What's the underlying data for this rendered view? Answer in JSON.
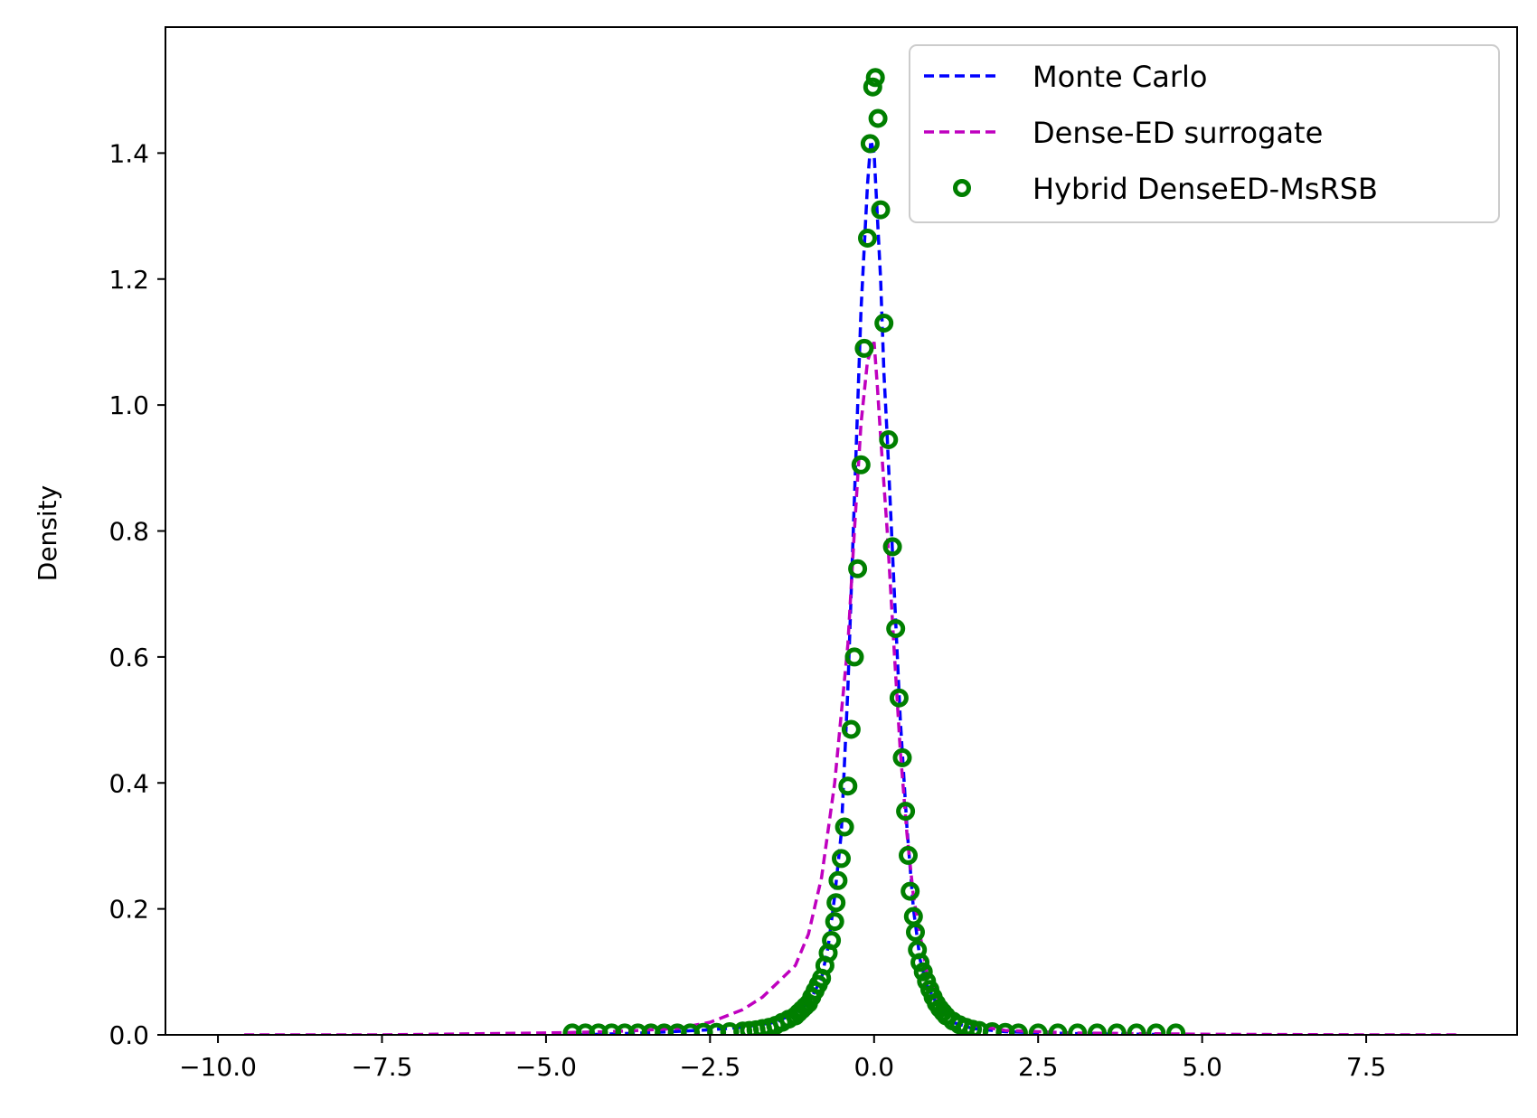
{
  "chart_data": {
    "type": "line",
    "title": "",
    "xlabel": "",
    "ylabel": "Density",
    "xlim": [
      -10.8,
      9.8
    ],
    "ylim": [
      0,
      1.6
    ],
    "x_ticks": [
      -10.0,
      -7.5,
      -5.0,
      -2.5,
      0.0,
      2.5,
      5.0,
      7.5
    ],
    "x_tick_labels": [
      "−10.0",
      "−7.5",
      "−5.0",
      "−2.5",
      "0.0",
      "2.5",
      "5.0",
      "7.5"
    ],
    "y_ticks": [
      0.0,
      0.2,
      0.4,
      0.6,
      0.8,
      1.0,
      1.2,
      1.4
    ],
    "y_tick_labels": [
      "0.0",
      "0.2",
      "0.4",
      "0.6",
      "0.8",
      "1.0",
      "1.2",
      "1.4"
    ],
    "grid": false,
    "legend_position": "top-right",
    "series": [
      {
        "name": "Monte Carlo",
        "style": "dashed",
        "color": "#0000ff",
        "x": [
          -4.5,
          -3.5,
          -2.5,
          -2.0,
          -1.5,
          -1.2,
          -1.0,
          -0.8,
          -0.7,
          -0.6,
          -0.5,
          -0.4,
          -0.3,
          -0.2,
          -0.1,
          -0.05,
          0.0,
          0.05,
          0.1,
          0.15,
          0.2,
          0.3,
          0.4,
          0.5,
          0.6,
          0.7,
          0.8,
          1.0,
          1.2,
          1.5,
          2.0,
          3.0,
          4.0,
          4.7
        ],
        "y": [
          0.0,
          0.003,
          0.008,
          0.012,
          0.02,
          0.035,
          0.05,
          0.09,
          0.14,
          0.22,
          0.32,
          0.55,
          0.85,
          1.15,
          1.35,
          1.42,
          1.4,
          1.3,
          1.2,
          1.05,
          0.95,
          0.72,
          0.5,
          0.33,
          0.2,
          0.12,
          0.08,
          0.04,
          0.02,
          0.01,
          0.005,
          0.002,
          0.001,
          0.0
        ]
      },
      {
        "name": "Dense-ED surrogate",
        "style": "dashed",
        "color": "#bf00bf",
        "x": [
          -9.6,
          -7.5,
          -5.0,
          -4.0,
          -3.0,
          -2.5,
          -2.0,
          -1.7,
          -1.5,
          -1.2,
          -1.0,
          -0.8,
          -0.6,
          -0.4,
          -0.3,
          -0.2,
          -0.1,
          0.0,
          0.05,
          0.1,
          0.2,
          0.3,
          0.4,
          0.5,
          0.6,
          0.8,
          1.0,
          1.5,
          2.0,
          3.0,
          5.0,
          7.5,
          8.9
        ],
        "y": [
          0.0,
          0.0,
          0.003,
          0.005,
          0.01,
          0.02,
          0.04,
          0.06,
          0.08,
          0.11,
          0.16,
          0.25,
          0.4,
          0.62,
          0.8,
          0.97,
          1.07,
          1.1,
          1.03,
          0.95,
          0.8,
          0.62,
          0.45,
          0.32,
          0.22,
          0.1,
          0.05,
          0.015,
          0.007,
          0.003,
          0.001,
          0.0,
          0.0
        ]
      },
      {
        "name": "Hybrid DenseED-MsRSB",
        "style": "circle-markers",
        "color": "#007f00",
        "x": [
          -4.6,
          -4.4,
          -4.2,
          -4.0,
          -3.8,
          -3.6,
          -3.4,
          -3.2,
          -3.0,
          -2.8,
          -2.6,
          -2.4,
          -2.2,
          -2.0,
          -1.9,
          -1.8,
          -1.7,
          -1.6,
          -1.5,
          -1.4,
          -1.3,
          -1.2,
          -1.15,
          -1.1,
          -1.05,
          -1.0,
          -0.95,
          -0.9,
          -0.85,
          -0.8,
          -0.75,
          -0.7,
          -0.65,
          -0.6,
          -0.58,
          -0.55,
          -0.5,
          -0.45,
          -0.4,
          -0.35,
          -0.3,
          -0.25,
          -0.2,
          -0.15,
          -0.1,
          -0.06,
          -0.02,
          0.02,
          0.06,
          0.1,
          0.15,
          0.22,
          0.28,
          0.33,
          0.38,
          0.43,
          0.48,
          0.52,
          0.55,
          0.6,
          0.63,
          0.66,
          0.7,
          0.75,
          0.8,
          0.85,
          0.9,
          0.95,
          1.0,
          1.05,
          1.1,
          1.2,
          1.3,
          1.4,
          1.5,
          1.6,
          1.8,
          2.0,
          2.2,
          2.5,
          2.8,
          3.1,
          3.4,
          3.7,
          4.0,
          4.3,
          4.6
        ],
        "y": [
          0.003,
          0.003,
          0.003,
          0.003,
          0.003,
          0.003,
          0.003,
          0.003,
          0.003,
          0.003,
          0.004,
          0.004,
          0.005,
          0.006,
          0.007,
          0.008,
          0.01,
          0.012,
          0.015,
          0.02,
          0.025,
          0.03,
          0.035,
          0.04,
          0.045,
          0.05,
          0.06,
          0.07,
          0.08,
          0.09,
          0.11,
          0.13,
          0.15,
          0.18,
          0.21,
          0.245,
          0.28,
          0.33,
          0.395,
          0.485,
          0.6,
          0.74,
          0.905,
          1.09,
          1.265,
          1.415,
          1.505,
          1.52,
          1.455,
          1.31,
          1.13,
          0.945,
          0.775,
          0.645,
          0.535,
          0.44,
          0.355,
          0.285,
          0.228,
          0.188,
          0.163,
          0.135,
          0.115,
          0.1,
          0.085,
          0.072,
          0.06,
          0.05,
          0.042,
          0.036,
          0.03,
          0.022,
          0.016,
          0.012,
          0.009,
          0.007,
          0.005,
          0.004,
          0.003,
          0.003,
          0.003,
          0.003,
          0.003,
          0.003,
          0.003,
          0.003,
          0.003
        ]
      }
    ]
  }
}
